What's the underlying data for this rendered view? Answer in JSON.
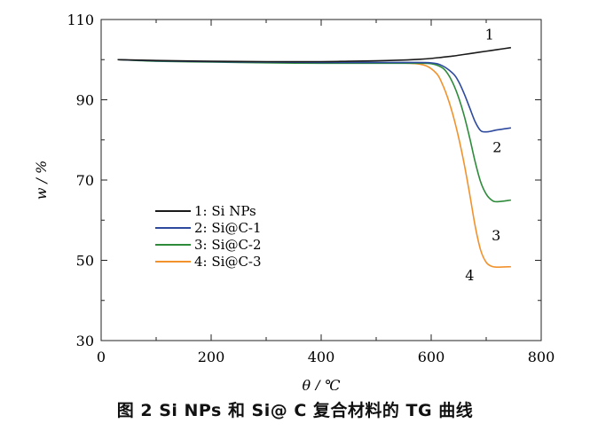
{
  "chart_data": {
    "type": "line",
    "title": "",
    "xlabel": "θ / ℃",
    "ylabel": "w / %",
    "xlim": [
      0,
      800
    ],
    "ylim": [
      30,
      110
    ],
    "xticks": [
      0,
      200,
      400,
      600,
      800
    ],
    "yticks": [
      30,
      50,
      70,
      90,
      110
    ],
    "legend_position": "lower-left",
    "series": [
      {
        "name": "1: Si NPs",
        "end_label": "1",
        "color": "#1a1a1a",
        "x": [
          30,
          100,
          200,
          300,
          400,
          450,
          500,
          550,
          580,
          600,
          620,
          640,
          660,
          680,
          700,
          720,
          745
        ],
        "y": [
          100,
          99.8,
          99.6,
          99.5,
          99.5,
          99.6,
          99.7,
          99.9,
          100.1,
          100.3,
          100.6,
          100.9,
          101.3,
          101.7,
          102.1,
          102.5,
          103
        ]
      },
      {
        "name": "2: Si@C-1",
        "end_label": "2",
        "color": "#2e4a9e",
        "x": [
          30,
          100,
          200,
          300,
          400,
          500,
          560,
          600,
          620,
          640,
          650,
          660,
          670,
          680,
          690,
          700,
          710,
          720,
          745
        ],
        "y": [
          100,
          99.7,
          99.5,
          99.4,
          99.3,
          99.3,
          99.3,
          99.2,
          98.5,
          96.5,
          94.5,
          91.5,
          88,
          84.5,
          82.3,
          82,
          82.2,
          82.5,
          83
        ]
      },
      {
        "name": "3: Si@C-2",
        "end_label": "3",
        "color": "#2e8b3a",
        "x": [
          30,
          100,
          200,
          300,
          400,
          500,
          560,
          600,
          620,
          630,
          640,
          650,
          660,
          670,
          680,
          690,
          700,
          710,
          720,
          745
        ],
        "y": [
          100,
          99.6,
          99.4,
          99.2,
          99.1,
          99.1,
          99.1,
          99,
          98,
          96.5,
          94,
          90.5,
          86,
          80.5,
          74.5,
          69.5,
          66.5,
          65,
          64.6,
          65
        ]
      },
      {
        "name": "4: Si@C-3",
        "end_label": "4",
        "color": "#f2922c",
        "x": [
          30,
          100,
          200,
          300,
          400,
          500,
          560,
          590,
          610,
          620,
          630,
          640,
          650,
          660,
          670,
          680,
          690,
          700,
          710,
          720,
          745
        ],
        "y": [
          100,
          99.7,
          99.5,
          99.3,
          99.2,
          99.2,
          99.1,
          98.5,
          96.5,
          94,
          90.5,
          86,
          80.5,
          74,
          66.5,
          58.5,
          52.5,
          49.5,
          48.5,
          48.3,
          48.4
        ]
      }
    ]
  },
  "caption": "图 2   Si NPs 和 Si@ C 复合材料的 TG 曲线"
}
